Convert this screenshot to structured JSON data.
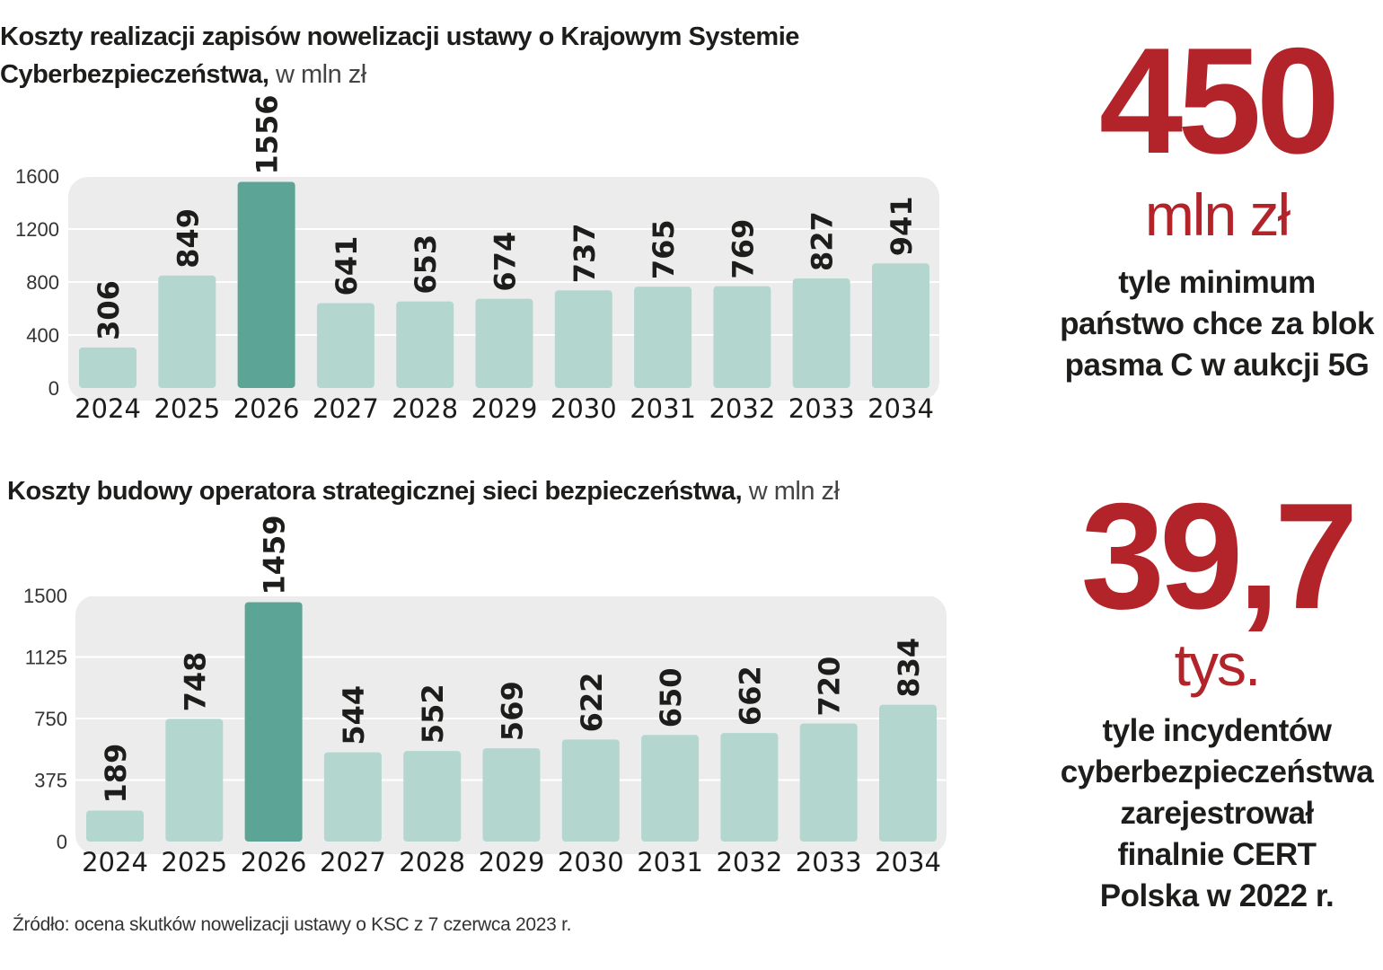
{
  "chart_data": [
    {
      "type": "bar",
      "title": "Koszty realizacji zapisów nowelizacji ustawy o Krajowym Systemie Cyberbezpieczeństwa,",
      "title_line1": "Koszty realizacji zapisów nowelizacji ustawy o Krajowym Systemie",
      "title_line2": "Cyberbezpieczeństwa,",
      "unit": "w mln zł",
      "categories": [
        "2024",
        "2025",
        "2026",
        "2027",
        "2028",
        "2029",
        "2030",
        "2031",
        "2032",
        "2033",
        "2034"
      ],
      "values": [
        306,
        849,
        1556,
        641,
        653,
        674,
        737,
        765,
        769,
        827,
        941
      ],
      "highlight_index": 2,
      "yticks": [
        0,
        400,
        800,
        1200,
        1600
      ],
      "ylim": [
        0,
        1600
      ],
      "grid": true,
      "colors": {
        "bar": "#b3d7cf",
        "highlight": "#5ba496",
        "background": "#ececec"
      }
    },
    {
      "type": "bar",
      "title": "Koszty budowy operatora strategicznej sieci bezpieczeństwa,",
      "unit": "w mln zł",
      "categories": [
        "2024",
        "2025",
        "2026",
        "2027",
        "2028",
        "2029",
        "2030",
        "2031",
        "2032",
        "2033",
        "2034"
      ],
      "values": [
        189,
        748,
        1459,
        544,
        552,
        569,
        622,
        650,
        662,
        720,
        834
      ],
      "highlight_index": 2,
      "yticks": [
        0,
        375,
        750,
        1125,
        1500
      ],
      "ylim": [
        0,
        1500
      ],
      "grid": true,
      "colors": {
        "bar": "#b3d7cf",
        "highlight": "#5ba496",
        "background": "#ececec"
      }
    }
  ],
  "source": "Źródło: ocena skutków nowelizacji ustawy o KSC z 7 czerwca 2023 r.",
  "stats": [
    {
      "number": "450",
      "unit": "mln zł",
      "desc": [
        "tyle minimum",
        "państwo chce za blok",
        "pasma C w aukcji 5G"
      ]
    },
    {
      "number": "39,7",
      "unit": "tys.",
      "desc": [
        "tyle incydentów",
        "cyberbezpieczeństwa",
        "zarejestrował",
        "finalnie CERT",
        "Polska w 2022 r."
      ]
    }
  ],
  "colors": {
    "accent": "#b3232a",
    "text": "#1d1d1b"
  }
}
